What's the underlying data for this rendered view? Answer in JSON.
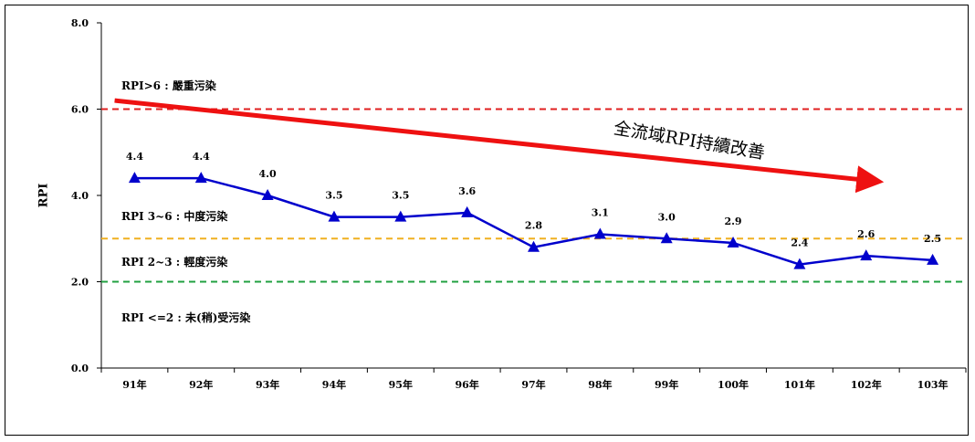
{
  "chart_data": {
    "type": "line",
    "title": "",
    "xlabel": "",
    "ylabel": "RPI",
    "ylim": [
      0,
      8
    ],
    "yticks": [
      "0.0",
      "2.0",
      "4.0",
      "6.0",
      "8.0"
    ],
    "categories": [
      "91年",
      "92年",
      "93年",
      "94年",
      "95年",
      "96年",
      "97年",
      "98年",
      "99年",
      "100年",
      "101年",
      "102年",
      "103年"
    ],
    "series": [
      {
        "values": [
          4.4,
          4.4,
          4.0,
          3.5,
          3.5,
          3.6,
          2.8,
          3.1,
          3.0,
          2.9,
          2.4,
          2.6,
          2.5
        ],
        "data_labels": [
          "4.4",
          "4.4",
          "4.0",
          "3.5",
          "3.5",
          "3.6",
          "2.8",
          "3.1",
          "3.0",
          "2.9",
          "2.4",
          "2.6",
          "2.5"
        ],
        "color": "#0000cc",
        "marker": "triangle"
      }
    ],
    "reference_lines": [
      {
        "value": 6,
        "color": "#e02020",
        "style": "dashed"
      },
      {
        "value": 3,
        "color": "#f0b020",
        "style": "dashed"
      },
      {
        "value": 2,
        "color": "#20a040",
        "style": "dashed"
      }
    ],
    "zone_labels": {
      "severe": "RPI>6 : 嚴重污染",
      "moderate": "RPI 3~6 : 中度污染",
      "light": "RPI 2~3 : 輕度污染",
      "none": "RPI <=2 : 未(稍)受污染"
    },
    "annotation": {
      "text": "全流域RPI持續改善",
      "arrow_color": "#ee1111",
      "arrow_from": [
        0.2,
        6.2
      ],
      "arrow_to": [
        11.7,
        4.3
      ]
    },
    "grid": false,
    "legend": "none"
  }
}
